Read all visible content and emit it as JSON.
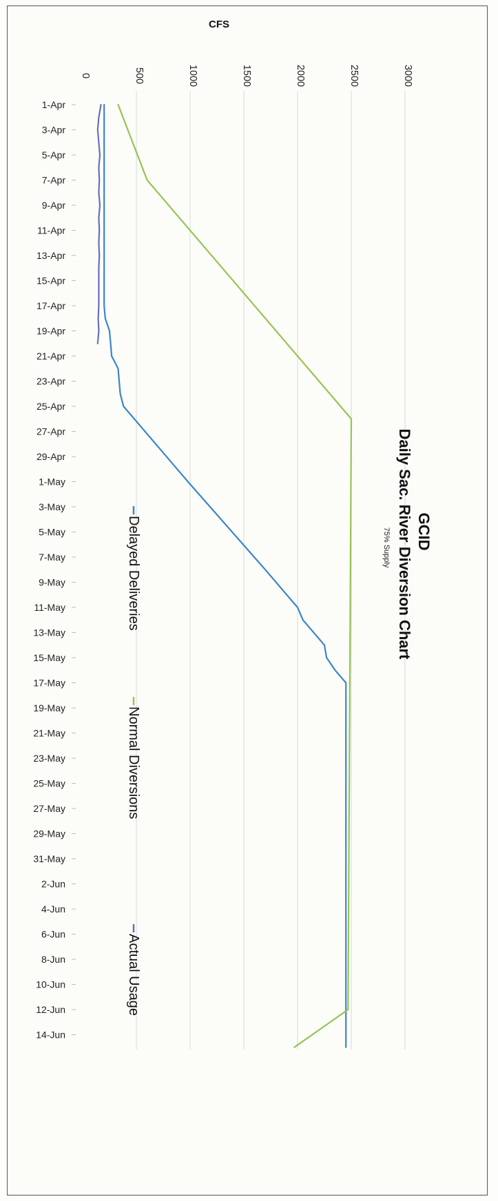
{
  "chart_data": {
    "type": "line",
    "title": "GCID",
    "subtitle": "Daily Sac. River Diversion Chart",
    "note": "75% Supply",
    "ylabel": "CFS",
    "xlabel": "",
    "ylim": [
      0,
      3000
    ],
    "yticks": [
      0,
      500,
      1000,
      1500,
      2000,
      2500,
      3000
    ],
    "grid": true,
    "legend_position": "right",
    "categories": [
      "1-Apr",
      "2-Apr",
      "3-Apr",
      "4-Apr",
      "5-Apr",
      "6-Apr",
      "7-Apr",
      "8-Apr",
      "9-Apr",
      "10-Apr",
      "11-Apr",
      "12-Apr",
      "13-Apr",
      "14-Apr",
      "15-Apr",
      "16-Apr",
      "17-Apr",
      "18-Apr",
      "19-Apr",
      "20-Apr",
      "21-Apr",
      "22-Apr",
      "23-Apr",
      "24-Apr",
      "25-Apr",
      "26-Apr",
      "27-Apr",
      "28-Apr",
      "29-Apr",
      "30-Apr",
      "1-May",
      "2-May",
      "3-May",
      "4-May",
      "5-May",
      "6-May",
      "7-May",
      "8-May",
      "9-May",
      "10-May",
      "11-May",
      "12-May",
      "13-May",
      "14-May",
      "15-May",
      "16-May",
      "17-May",
      "18-May",
      "19-May",
      "20-May",
      "21-May",
      "22-May",
      "23-May",
      "24-May",
      "25-May",
      "26-May",
      "27-May",
      "28-May",
      "29-May",
      "30-May",
      "31-May",
      "1-Jun",
      "2-Jun",
      "3-Jun",
      "4-Jun",
      "5-Jun",
      "6-Jun",
      "7-Jun",
      "8-Jun",
      "9-Jun",
      "10-Jun",
      "11-Jun",
      "12-Jun",
      "13-Jun",
      "14-Jun",
      "15-Jun"
    ],
    "tick_labels": [
      "1-Apr",
      "3-Apr",
      "5-Apr",
      "7-Apr",
      "9-Apr",
      "11-Apr",
      "13-Apr",
      "15-Apr",
      "17-Apr",
      "19-Apr",
      "21-Apr",
      "23-Apr",
      "25-Apr",
      "27-Apr",
      "29-Apr",
      "1-May",
      "3-May",
      "5-May",
      "7-May",
      "9-May",
      "11-May",
      "13-May",
      "15-May",
      "17-May",
      "19-May",
      "21-May",
      "23-May",
      "25-May",
      "27-May",
      "29-May",
      "31-May",
      "2-Jun",
      "4-Jun",
      "6-Jun",
      "8-Jun",
      "10-Jun",
      "12-Jun",
      "14-Jun"
    ],
    "series": [
      {
        "name": "Delayed Deliveries",
        "color": "#3a86c6",
        "points": [
          [
            "1-Apr",
            200
          ],
          [
            "17-Apr",
            200
          ],
          [
            "18-Apr",
            210
          ],
          [
            "19-Apr",
            250
          ],
          [
            "20-Apr",
            260
          ],
          [
            "21-Apr",
            270
          ],
          [
            "22-Apr",
            330
          ],
          [
            "23-Apr",
            340
          ],
          [
            "24-Apr",
            350
          ],
          [
            "25-Apr",
            380
          ],
          [
            "1-May",
            980
          ],
          [
            "8-May",
            1700
          ],
          [
            "9-May",
            1800
          ],
          [
            "10-May",
            1900
          ],
          [
            "11-May",
            2000
          ],
          [
            "12-May",
            2050
          ],
          [
            "13-May",
            2150
          ],
          [
            "14-May",
            2250
          ],
          [
            "15-May",
            2270
          ],
          [
            "16-May",
            2350
          ],
          [
            "17-May",
            2450
          ],
          [
            "15-Jun",
            2450
          ]
        ]
      },
      {
        "name": "Normal Diversions",
        "color": "#96c454",
        "points": [
          [
            "1-Apr",
            330
          ],
          [
            "7-Apr",
            600
          ],
          [
            "26-Apr",
            2500
          ],
          [
            "12-Jun",
            2470
          ],
          [
            "15-Jun",
            1970
          ]
        ]
      },
      {
        "name": "Actual Usage",
        "color": "#6b6fb4",
        "points": [
          [
            "1-Apr",
            170
          ],
          [
            "2-Apr",
            150
          ],
          [
            "3-Apr",
            140
          ],
          [
            "4-Apr",
            150
          ],
          [
            "5-Apr",
            160
          ],
          [
            "6-Apr",
            150
          ],
          [
            "7-Apr",
            155
          ],
          [
            "8-Apr",
            150
          ],
          [
            "9-Apr",
            160
          ],
          [
            "10-Apr",
            150
          ],
          [
            "11-Apr",
            155
          ],
          [
            "12-Apr",
            150
          ],
          [
            "13-Apr",
            155
          ],
          [
            "14-Apr",
            150
          ],
          [
            "15-Apr",
            150
          ],
          [
            "16-Apr",
            150
          ],
          [
            "17-Apr",
            150
          ],
          [
            "18-Apr",
            145
          ],
          [
            "19-Apr",
            150
          ],
          [
            "20-Apr",
            140
          ]
        ]
      }
    ]
  }
}
